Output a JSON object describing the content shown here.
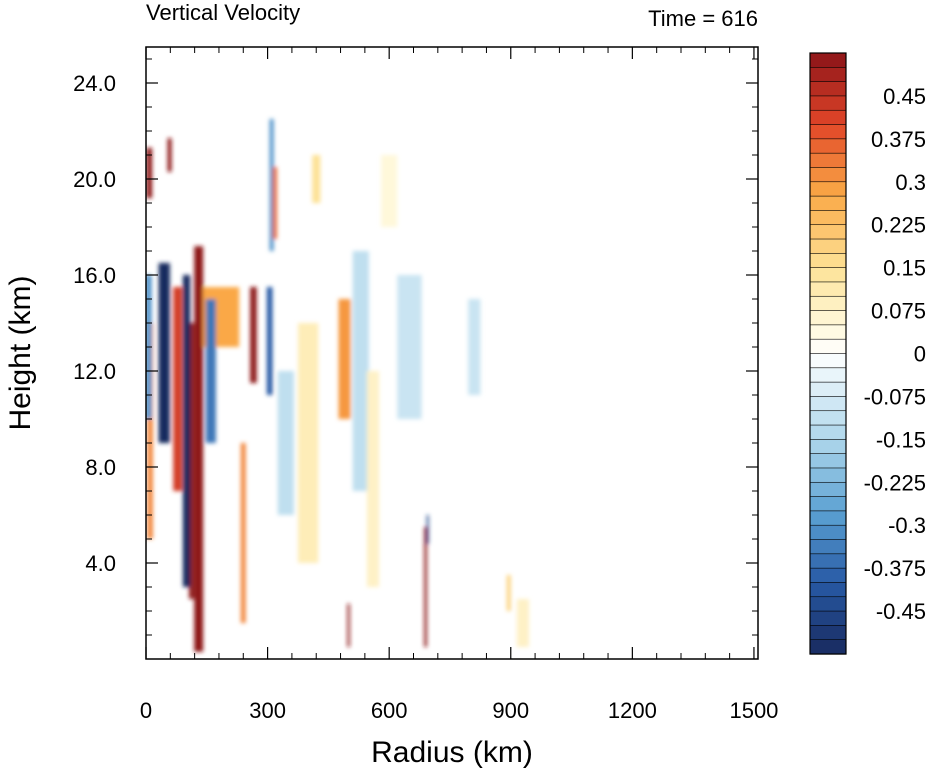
{
  "chart_data": {
    "type": "heatmap",
    "title": "Vertical Velocity",
    "subtitle": "Time = 616",
    "xlabel": "Radius (km)",
    "ylabel": "Height (km)",
    "xlim": [
      0,
      1510
    ],
    "ylim": [
      0,
      25.5
    ],
    "xticks": [
      0,
      300,
      600,
      900,
      1200,
      1500
    ],
    "xtick_labels": [
      "0",
      "300",
      "600",
      "900",
      "1200",
      "1500"
    ],
    "yticks": [
      4,
      8,
      12,
      16,
      20,
      24
    ],
    "ytick_labels": [
      "4.0",
      "8.0",
      "12.0",
      "16.0",
      "20.0",
      "24.0"
    ],
    "grid": false,
    "colorbar": {
      "min": -0.525,
      "max": 0.525,
      "step": 0.025,
      "labels": [
        "0.45",
        "0.375",
        "0.3",
        "0.225",
        "0.15",
        "0.075",
        "0",
        "-0.075",
        "-0.15",
        "-0.225",
        "-0.3",
        "-0.375",
        "-0.45"
      ],
      "label_values": [
        0.45,
        0.375,
        0.3,
        0.225,
        0.15,
        0.075,
        0,
        -0.075,
        -0.15,
        -0.225,
        -0.3,
        -0.375,
        -0.45
      ]
    },
    "features": [
      {
        "r": 130,
        "r_width": 22,
        "z0": 0.3,
        "z1": 17.2,
        "w": 0.6
      },
      {
        "r": 112,
        "r_width": 12,
        "z0": 2.5,
        "z1": 14,
        "w": 0.55
      },
      {
        "r": 100,
        "r_width": 18,
        "z0": 3,
        "z1": 16,
        "w": -0.55
      },
      {
        "r": 78,
        "r_width": 22,
        "z0": 7,
        "z1": 15.5,
        "w": 0.42
      },
      {
        "r": 45,
        "r_width": 28,
        "z0": 9,
        "z1": 16.5,
        "w": -0.55
      },
      {
        "r": 10,
        "r_width": 14,
        "z0": 5,
        "z1": 14,
        "w": 0.32
      },
      {
        "r": 6,
        "r_width": 16,
        "z0": 10,
        "z1": 16,
        "w": -0.3
      },
      {
        "r": 8,
        "r_width": 14,
        "z0": 19.2,
        "z1": 21.3,
        "w": 0.6
      },
      {
        "r": 58,
        "r_width": 10,
        "z0": 20.3,
        "z1": 21.7,
        "w": 0.55
      },
      {
        "r": 185,
        "r_width": 90,
        "z0": 13,
        "z1": 15.5,
        "w": 0.28
      },
      {
        "r": 160,
        "r_width": 25,
        "z0": 9,
        "z1": 15,
        "w": -0.35
      },
      {
        "r": 240,
        "r_width": 12,
        "z0": 1.5,
        "z1": 9,
        "w": 0.32
      },
      {
        "r": 265,
        "r_width": 16,
        "z0": 11.5,
        "z1": 15.5,
        "w": 0.58
      },
      {
        "r": 305,
        "r_width": 14,
        "z0": 11,
        "z1": 15.5,
        "w": -0.4
      },
      {
        "r": 310,
        "r_width": 10,
        "z0": 17,
        "z1": 22.5,
        "w": -0.3
      },
      {
        "r": 318,
        "r_width": 10,
        "z0": 17.5,
        "z1": 20.5,
        "w": 0.35
      },
      {
        "r": 345,
        "r_width": 40,
        "z0": 6,
        "z1": 12,
        "w": -0.12
      },
      {
        "r": 400,
        "r_width": 50,
        "z0": 4,
        "z1": 14,
        "w": 0.1
      },
      {
        "r": 490,
        "r_width": 30,
        "z0": 10,
        "z1": 15,
        "w": 0.3
      },
      {
        "r": 530,
        "r_width": 40,
        "z0": 7,
        "z1": 17,
        "w": -0.12
      },
      {
        "r": 560,
        "r_width": 30,
        "z0": 3,
        "z1": 12,
        "w": 0.08
      },
      {
        "r": 500,
        "r_width": 6,
        "z0": 0.5,
        "z1": 2.3,
        "w": 0.55
      },
      {
        "r": 690,
        "r_width": 7,
        "z0": 0.5,
        "z1": 5.5,
        "w": 0.6
      },
      {
        "r": 695,
        "r_width": 5,
        "z0": 4.8,
        "z1": 6,
        "w": -0.45
      },
      {
        "r": 650,
        "r_width": 60,
        "z0": 10,
        "z1": 16,
        "w": -0.1
      },
      {
        "r": 810,
        "r_width": 30,
        "z0": 11,
        "z1": 15,
        "w": -0.1
      },
      {
        "r": 895,
        "r_width": 10,
        "z0": 2,
        "z1": 3.5,
        "w": 0.18
      },
      {
        "r": 930,
        "r_width": 30,
        "z0": 0.5,
        "z1": 2.5,
        "w": 0.08
      },
      {
        "r": 420,
        "r_width": 20,
        "z0": 19,
        "z1": 21,
        "w": 0.15
      },
      {
        "r": 600,
        "r_width": 40,
        "z0": 18,
        "z1": 21,
        "w": 0.05
      }
    ]
  }
}
